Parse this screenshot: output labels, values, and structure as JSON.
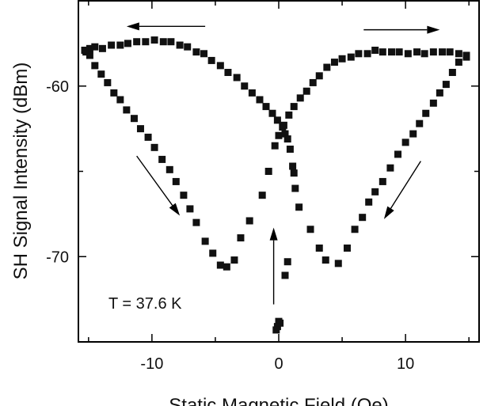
{
  "chart_data": {
    "type": "scatter",
    "xlabel": "Static Magnetic Field (Oe)",
    "ylabel": "SH Signal Intensity (dBm)",
    "xlim": [
      -15.8,
      15.8
    ],
    "ylim": [
      -75,
      -55
    ],
    "x_ticks": [
      -10,
      0,
      10
    ],
    "y_ticks": [
      -70,
      -60
    ],
    "x_tick_labels": [
      "-10",
      "0",
      "10"
    ],
    "y_tick_labels": [
      "-70",
      "-60"
    ],
    "grid": false,
    "annotation": "T = 37.6 K",
    "marker_color": "#111111",
    "series": [
      {
        "name": "",
        "points": [
          [
            -15.2,
            -58.0
          ],
          [
            -14.9,
            -57.8
          ],
          [
            -14.5,
            -57.7
          ],
          [
            -13.9,
            -57.8
          ],
          [
            -13.2,
            -57.6
          ],
          [
            -12.5,
            -57.6
          ],
          [
            -11.9,
            -57.5
          ],
          [
            -11.2,
            -57.4
          ],
          [
            -10.5,
            -57.4
          ],
          [
            -9.8,
            -57.3
          ],
          [
            -9.1,
            -57.4
          ],
          [
            -8.5,
            -57.4
          ],
          [
            -7.8,
            -57.6
          ],
          [
            -7.2,
            -57.7
          ],
          [
            -6.5,
            -58.0
          ],
          [
            -5.9,
            -58.1
          ],
          [
            -5.3,
            -58.5
          ],
          [
            -4.6,
            -58.8
          ],
          [
            -4.0,
            -59.2
          ],
          [
            -3.3,
            -59.5
          ],
          [
            -2.7,
            -60.0
          ],
          [
            -2.1,
            -60.4
          ],
          [
            -1.5,
            -60.8
          ],
          [
            -1.0,
            -61.2
          ],
          [
            -0.5,
            -61.6
          ],
          [
            -0.1,
            -62.0
          ],
          [
            0.3,
            -62.4
          ],
          [
            0.5,
            -62.8
          ],
          [
            0.7,
            -63.1
          ],
          [
            0.9,
            -63.7
          ],
          [
            1.1,
            -64.7
          ],
          [
            1.2,
            -65.1
          ],
          [
            1.3,
            -66.0
          ],
          [
            1.6,
            -67.1
          ],
          [
            2.5,
            -68.4
          ],
          [
            3.2,
            -69.5
          ],
          [
            3.7,
            -70.2
          ],
          [
            4.7,
            -70.4
          ],
          [
            5.4,
            -69.5
          ],
          [
            6.0,
            -68.4
          ],
          [
            6.6,
            -67.7
          ],
          [
            7.1,
            -66.8
          ],
          [
            7.6,
            -66.2
          ],
          [
            8.2,
            -65.6
          ],
          [
            8.8,
            -64.8
          ],
          [
            9.4,
            -64.0
          ],
          [
            10.0,
            -63.3
          ],
          [
            10.6,
            -62.8
          ],
          [
            11.1,
            -62.2
          ],
          [
            11.6,
            -61.6
          ],
          [
            12.2,
            -61.0
          ],
          [
            12.7,
            -60.4
          ],
          [
            13.2,
            -59.9
          ],
          [
            13.7,
            -59.2
          ],
          [
            14.2,
            -58.6
          ],
          [
            14.8,
            -58.3
          ]
        ]
      },
      {
        "name": "",
        "points": [
          [
            14.8,
            -58.2
          ],
          [
            14.2,
            -58.1
          ],
          [
            13.5,
            -58.0
          ],
          [
            12.9,
            -58.0
          ],
          [
            12.2,
            -58.0
          ],
          [
            11.5,
            -58.1
          ],
          [
            10.9,
            -58.0
          ],
          [
            10.2,
            -58.1
          ],
          [
            9.5,
            -58.0
          ],
          [
            8.9,
            -58.0
          ],
          [
            8.2,
            -58.0
          ],
          [
            7.6,
            -57.9
          ],
          [
            7.0,
            -58.1
          ],
          [
            6.3,
            -58.1
          ],
          [
            5.7,
            -58.3
          ],
          [
            5.0,
            -58.4
          ],
          [
            4.4,
            -58.6
          ],
          [
            3.8,
            -58.9
          ],
          [
            3.2,
            -59.4
          ],
          [
            2.7,
            -59.8
          ],
          [
            2.2,
            -60.3
          ],
          [
            1.7,
            -60.7
          ],
          [
            1.2,
            -61.2
          ],
          [
            0.8,
            -61.7
          ],
          [
            0.4,
            -62.3
          ],
          [
            0.0,
            -62.9
          ],
          [
            -0.3,
            -63.5
          ],
          [
            -0.8,
            -65.0
          ],
          [
            -1.3,
            -66.4
          ],
          [
            -2.3,
            -67.9
          ],
          [
            -3.0,
            -68.9
          ],
          [
            -3.5,
            -70.2
          ],
          [
            -4.1,
            -70.6
          ],
          [
            -4.6,
            -70.5
          ],
          [
            -5.2,
            -69.8
          ],
          [
            -5.8,
            -69.1
          ],
          [
            -6.5,
            -68.0
          ],
          [
            -7.0,
            -67.2
          ],
          [
            -7.5,
            -66.4
          ],
          [
            -8.1,
            -65.6
          ],
          [
            -8.6,
            -64.9
          ],
          [
            -9.2,
            -64.3
          ],
          [
            -9.8,
            -63.6
          ],
          [
            -10.3,
            -63.0
          ],
          [
            -10.9,
            -62.5
          ],
          [
            -11.4,
            -61.9
          ],
          [
            -12.0,
            -61.4
          ],
          [
            -12.5,
            -60.8
          ],
          [
            -13.0,
            -60.4
          ],
          [
            -13.5,
            -59.8
          ],
          [
            -14.0,
            -59.3
          ],
          [
            -14.5,
            -58.8
          ],
          [
            -14.9,
            -58.2
          ],
          [
            -15.3,
            -57.9
          ]
        ]
      },
      {
        "name": "",
        "points": [
          [
            0.0,
            -73.8
          ],
          [
            0.1,
            -73.9
          ],
          [
            -0.1,
            -74.1
          ],
          [
            -0.2,
            -74.3
          ],
          [
            0.5,
            -71.1
          ],
          [
            0.7,
            -70.3
          ]
        ]
      }
    ],
    "arrows": [
      {
        "from": [
          -5.8,
          -56.5
        ],
        "to": [
          -12.0,
          -56.5
        ]
      },
      {
        "from": [
          6.7,
          -56.7
        ],
        "to": [
          12.7,
          -56.7
        ]
      },
      {
        "from": [
          -11.2,
          -64.1
        ],
        "to": [
          -7.8,
          -67.6
        ]
      },
      {
        "from": [
          11.2,
          -64.4
        ],
        "to": [
          8.3,
          -67.8
        ]
      },
      {
        "from": [
          -0.4,
          -72.8
        ],
        "to": [
          -0.4,
          -68.3
        ]
      }
    ]
  }
}
